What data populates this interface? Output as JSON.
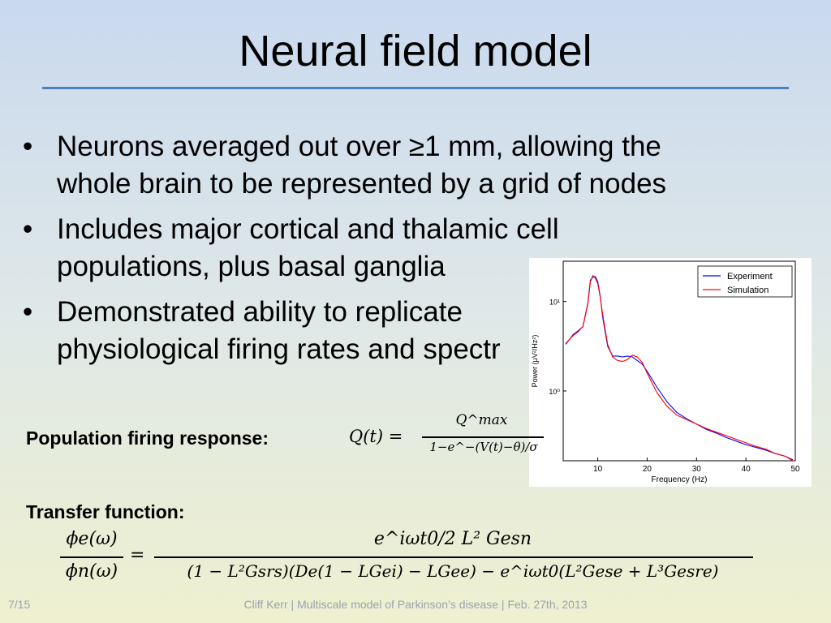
{
  "slide": {
    "title": "Neural field model",
    "bullets": [
      {
        "marker": "•",
        "lines": [
          "Neurons averaged out over ≥1 mm, allowing the",
          "whole brain to be represented by a grid of nodes"
        ]
      },
      {
        "marker": "•",
        "lines": [
          "Includes major cortical and thalamic cell",
          "populations, plus basal ganglia"
        ]
      },
      {
        "marker": "•",
        "lines": [
          "Demonstrated ability to replicate",
          "physiological firing rates and spectr"
        ]
      }
    ],
    "population_label": "Population firing response:",
    "population_eq": {
      "lhs": "Q(t) =",
      "numerator": "Q^max",
      "denominator": "1−e^−(V(t)−θ)/σ"
    },
    "transfer_label": "Transfer function:",
    "transfer_eq": {
      "lhs_num": "ϕe(ω)",
      "lhs_den": "ϕn(ω)",
      "rhs_num": "e^iωt0/2 L² Gesn",
      "rhs_den": "(1 − L²Gsrs)(De(1 − LGei) − LGee) − e^iωt0(L²Gese + L³Gesre)"
    },
    "footer_page": "7/15",
    "footer_text": "Cliff Kerr | Multiscale model of Parkinson’s disease | Feb. 27th, 2013",
    "accent_color": "#4f81bd"
  },
  "chart_data": {
    "type": "line",
    "xlabel": "Frequency (Hz)",
    "ylabel": "Power (μV²/Hz²)",
    "xlim": [
      3,
      50
    ],
    "ylim_log10": [
      -0.78,
      1.45
    ],
    "x_ticks": [
      10,
      20,
      30,
      40,
      50
    ],
    "y_ticks_log10": [
      0,
      1
    ],
    "y_tick_labels": [
      "10⁰",
      "10¹"
    ],
    "legend": "top-right",
    "series": [
      {
        "name": "Experiment",
        "color": "#0000ff",
        "x": [
          3.5,
          5,
          6,
          7,
          8,
          8.5,
          9,
          9.5,
          10,
          10.5,
          11,
          12,
          13,
          14,
          15,
          16,
          17,
          18,
          19,
          20,
          22,
          24,
          26,
          28,
          30,
          32,
          34,
          36,
          38,
          40,
          42,
          44,
          46,
          48,
          49.5
        ],
        "y": [
          0.52,
          0.63,
          0.67,
          0.72,
          0.98,
          1.24,
          1.27,
          1.28,
          1.22,
          1.06,
          0.82,
          0.5,
          0.39,
          0.39,
          0.38,
          0.39,
          0.38,
          0.34,
          0.3,
          0.22,
          0.04,
          -0.12,
          -0.24,
          -0.31,
          -0.37,
          -0.43,
          -0.47,
          -0.52,
          -0.56,
          -0.6,
          -0.63,
          -0.66,
          -0.7,
          -0.73,
          -0.77
        ]
      },
      {
        "name": "Simulation",
        "color": "#ff0000",
        "x": [
          3.5,
          5,
          6,
          7,
          8,
          8.5,
          9,
          9.5,
          10,
          10.5,
          11,
          12,
          13,
          14,
          15,
          16,
          17,
          18,
          19,
          20,
          22,
          24,
          26,
          28,
          30,
          32,
          34,
          36,
          38,
          40,
          42,
          44,
          46,
          48,
          49.5
        ],
        "y": [
          0.53,
          0.62,
          0.66,
          0.72,
          0.97,
          1.22,
          1.29,
          1.26,
          1.2,
          1.05,
          0.85,
          0.52,
          0.38,
          0.34,
          0.33,
          0.35,
          0.4,
          0.38,
          0.32,
          0.2,
          -0.02,
          -0.17,
          -0.27,
          -0.32,
          -0.37,
          -0.42,
          -0.46,
          -0.5,
          -0.54,
          -0.58,
          -0.62,
          -0.65,
          -0.7,
          -0.73,
          -0.78
        ]
      }
    ]
  }
}
